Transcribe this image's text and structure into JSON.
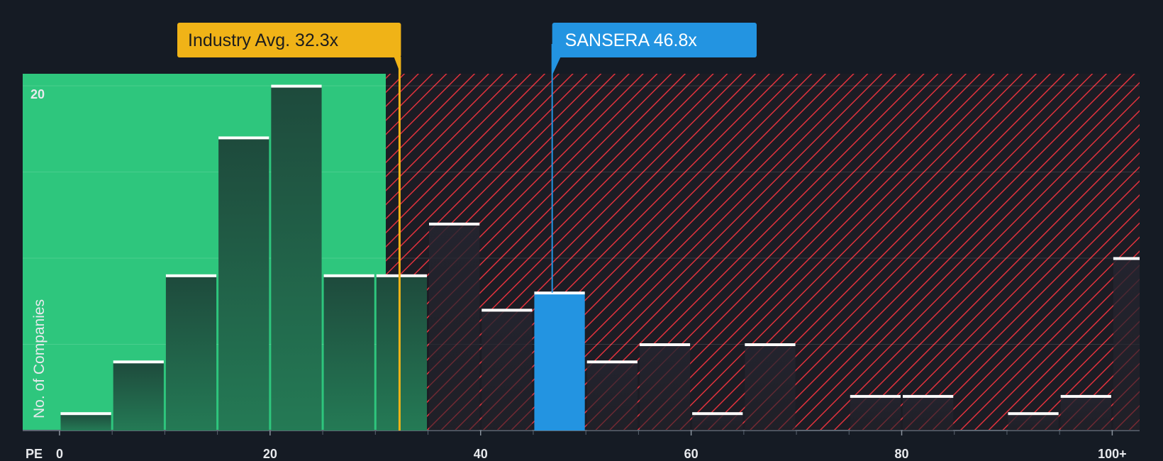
{
  "chart_data": {
    "type": "bar",
    "title": "",
    "xlabel": "PE",
    "ylabel": "No. of Companies",
    "x_ticks": [
      {
        "value": 0,
        "label": "0"
      },
      {
        "value": 20,
        "label": "20"
      },
      {
        "value": 40,
        "label": "40"
      },
      {
        "value": 60,
        "label": "60"
      },
      {
        "value": 80,
        "label": "80"
      },
      {
        "value": 100,
        "label": "100+"
      }
    ],
    "y_ticks": [
      {
        "value": 20,
        "label": "20"
      }
    ],
    "xlim": [
      -3.5,
      102.6
    ],
    "ylim": [
      0,
      20.7
    ],
    "bin_width": 5,
    "bins": [
      {
        "x": 2.5,
        "count": 1
      },
      {
        "x": 7.5,
        "count": 4
      },
      {
        "x": 12.5,
        "count": 9
      },
      {
        "x": 17.5,
        "count": 17
      },
      {
        "x": 22.5,
        "count": 20
      },
      {
        "x": 27.5,
        "count": 9
      },
      {
        "x": 32.5,
        "count": 9
      },
      {
        "x": 37.5,
        "count": 12
      },
      {
        "x": 42.5,
        "count": 7
      },
      {
        "x": 47.5,
        "count": 8,
        "highlight": true
      },
      {
        "x": 52.5,
        "count": 4
      },
      {
        "x": 57.5,
        "count": 5
      },
      {
        "x": 62.5,
        "count": 1
      },
      {
        "x": 67.5,
        "count": 5
      },
      {
        "x": 72.5,
        "count": 0
      },
      {
        "x": 77.5,
        "count": 2
      },
      {
        "x": 82.5,
        "count": 2
      },
      {
        "x": 87.5,
        "count": 0
      },
      {
        "x": 92.5,
        "count": 1
      },
      {
        "x": 97.5,
        "count": 2
      },
      {
        "x": 102.5,
        "count": 10
      }
    ],
    "fair_region_end": 31,
    "industry_avg": {
      "label": "Industry Avg. 32.3x",
      "value": 32.3
    },
    "company": {
      "label": "SANSERA 46.8x",
      "value": 46.8
    },
    "colors": {
      "background": "#151b24",
      "fair": "#2ec67d",
      "over_hatch": "#e0323d",
      "over_bg": "#1c1c24",
      "bar_fill_green": "#1e4a3c",
      "bar_fill_dark": "#23242d",
      "highlight_bar": "#2394e1",
      "industry": "#f0b317",
      "cap": "#ffffff",
      "text": "#e8eaed"
    }
  }
}
